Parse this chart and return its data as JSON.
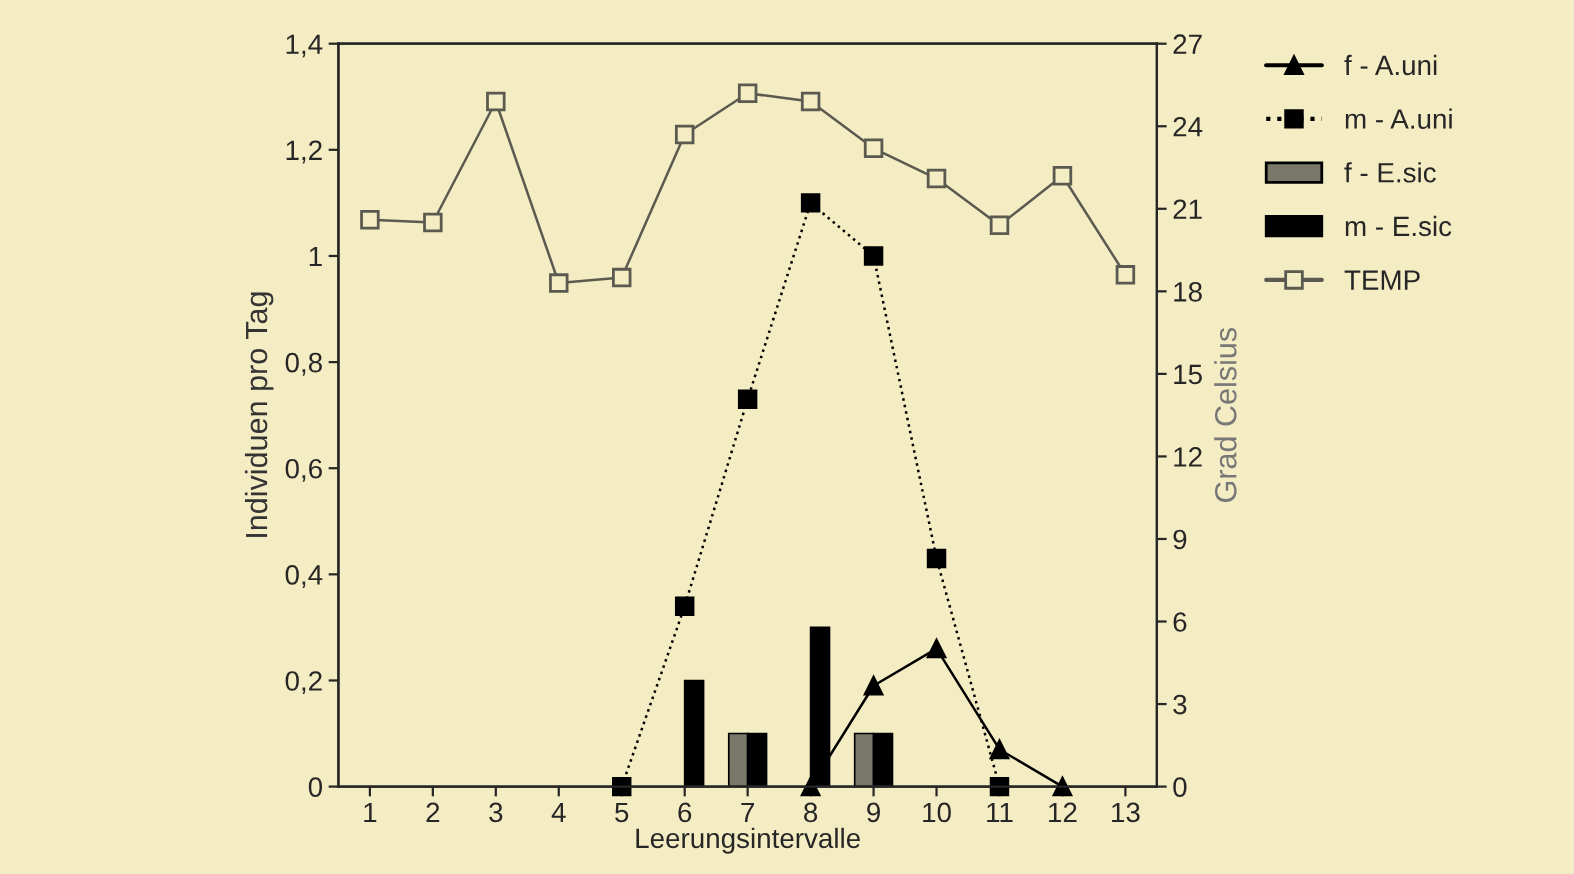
{
  "chart_data": {
    "type": "bar",
    "xlabel": "Leerungsintervalle",
    "ylabel": "Individuen pro Tag",
    "y2label": "Grad Celsius",
    "categories": [
      "1",
      "2",
      "3",
      "4",
      "5",
      "6",
      "7",
      "8",
      "9",
      "10",
      "11",
      "12",
      "13"
    ],
    "series": [
      {
        "name": "f - A.uni",
        "type": "line",
        "color": "#000000",
        "marker": "triangle",
        "line_style": "solid",
        "values": [
          null,
          null,
          null,
          null,
          null,
          null,
          null,
          0,
          0.19,
          0.26,
          0.07,
          0,
          null
        ]
      },
      {
        "name": "m - A.uni",
        "type": "line",
        "color": "#000000",
        "marker": "square",
        "line_style": "dotted",
        "values": [
          null,
          null,
          null,
          null,
          0,
          0.34,
          0.73,
          1.1,
          1.0,
          0.43,
          0,
          null,
          null
        ]
      },
      {
        "name": "f - E.sic",
        "color": "#7a7868",
        "values": [
          null,
          null,
          null,
          null,
          null,
          null,
          0.1,
          null,
          0.1,
          null,
          null,
          null,
          null
        ]
      },
      {
        "name": "m - E.sic",
        "color": "#000000",
        "values": [
          null,
          null,
          null,
          null,
          null,
          0.2,
          0.1,
          0.3,
          0.1,
          null,
          null,
          null,
          null
        ]
      },
      {
        "name": "TEMP",
        "type": "line",
        "axis": "y2",
        "color": "#5a5a50",
        "marker": "square",
        "line_style": "solid",
        "values": [
          20.6,
          20.5,
          24.9,
          18.3,
          18.5,
          23.7,
          25.2,
          24.9,
          23.2,
          22.1,
          20.4,
          22.2,
          18.6
        ]
      }
    ],
    "ylim": [
      0,
      1.4
    ],
    "yticks": [
      0,
      {
        "value": 0.2,
        "label": "0,2"
      },
      {
        "value": 0.4,
        "label": "0,4"
      },
      {
        "value": 0.6,
        "label": "0,6"
      },
      {
        "value": 0.8,
        "label": "0,8"
      },
      1,
      {
        "value": 1.2,
        "label": "1,2"
      },
      {
        "value": 1.4,
        "label": "1,4"
      }
    ],
    "y2lim": [
      0,
      27
    ],
    "y2ticks": [
      0,
      3,
      6,
      9,
      12,
      15,
      18,
      21,
      24,
      27
    ],
    "grid": false,
    "legend": "top right"
  }
}
